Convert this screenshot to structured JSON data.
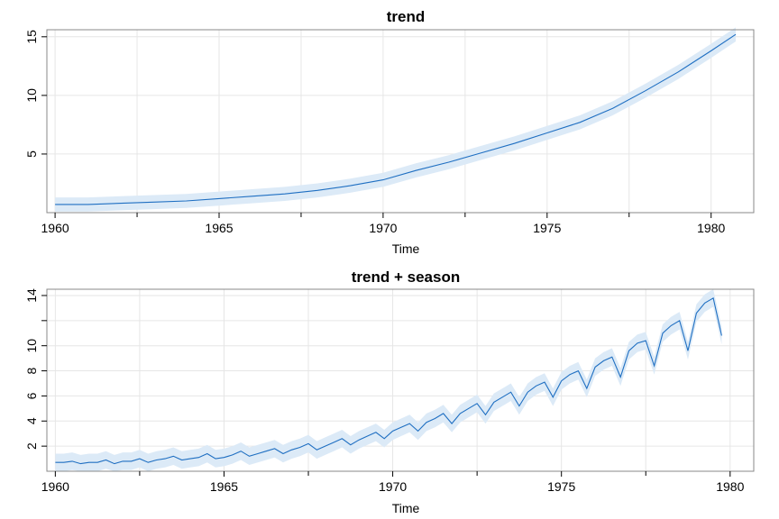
{
  "chart_data": [
    {
      "type": "line",
      "title": "trend",
      "xlabel": "Time",
      "ylabel": "",
      "xlim": [
        1959.75,
        1981.3
      ],
      "ylim": [
        0.0,
        15.6
      ],
      "xticks": [
        1960,
        1965,
        1970,
        1975,
        1980
      ],
      "xtick_labels": [
        "1960",
        "1965",
        "1970",
        "1975",
        "1980"
      ],
      "yticks": [
        5,
        10,
        15
      ],
      "ytick_labels": [
        "5",
        "10",
        "15"
      ],
      "grid": true,
      "color": "#1f6fc2",
      "band_color": "#dceaf7",
      "series": [
        {
          "x": [
            1960.0,
            1961.0,
            1962.0,
            1963.0,
            1964.0,
            1965.0,
            1966.0,
            1967.0,
            1968.0,
            1969.0,
            1970.0,
            1971.0,
            1972.0,
            1973.0,
            1974.0,
            1975.0,
            1976.0,
            1977.0,
            1978.0,
            1979.0,
            1980.0,
            1980.75
          ],
          "values": [
            0.7,
            0.7,
            0.8,
            0.9,
            1.0,
            1.2,
            1.4,
            1.6,
            1.9,
            2.3,
            2.8,
            3.6,
            4.3,
            5.1,
            5.9,
            6.8,
            7.7,
            8.9,
            10.4,
            12.0,
            13.8,
            15.2
          ],
          "band": [
            0.6,
            0.6,
            0.6,
            0.6,
            0.6,
            0.6,
            0.6,
            0.6,
            0.6,
            0.6,
            0.6,
            0.6,
            0.6,
            0.6,
            0.6,
            0.6,
            0.6,
            0.6,
            0.6,
            0.6,
            0.6,
            0.6
          ]
        }
      ]
    },
    {
      "type": "line",
      "title": "trend + season",
      "xlabel": "Time",
      "ylabel": "",
      "xlim": [
        1959.75,
        1980.7
      ],
      "ylim": [
        0.0,
        14.5
      ],
      "xticks": [
        1960,
        1965,
        1970,
        1975,
        1980
      ],
      "xtick_labels": [
        "1960",
        "1965",
        "1970",
        "1975",
        "1980"
      ],
      "yticks": [
        2,
        4,
        6,
        8,
        10,
        12,
        14
      ],
      "ytick_labels": [
        "2",
        "4",
        "6",
        "8",
        "10",
        "",
        "14"
      ],
      "grid": true,
      "color": "#1f6fc2",
      "band_color": "#dceaf7",
      "series": [
        {
          "x": [
            1960.0,
            1960.25,
            1960.5,
            1960.75,
            1961.0,
            1961.25,
            1961.5,
            1961.75,
            1962.0,
            1962.25,
            1962.5,
            1962.75,
            1963.0,
            1963.25,
            1963.5,
            1963.75,
            1964.0,
            1964.25,
            1964.5,
            1964.75,
            1965.0,
            1965.25,
            1965.5,
            1965.75,
            1966.0,
            1966.25,
            1966.5,
            1966.75,
            1967.0,
            1967.25,
            1967.5,
            1967.75,
            1968.0,
            1968.25,
            1968.5,
            1968.75,
            1969.0,
            1969.25,
            1969.5,
            1969.75,
            1970.0,
            1970.25,
            1970.5,
            1970.75,
            1971.0,
            1971.25,
            1971.5,
            1971.75,
            1972.0,
            1972.25,
            1972.5,
            1972.75,
            1973.0,
            1973.25,
            1973.5,
            1973.75,
            1974.0,
            1974.25,
            1974.5,
            1974.75,
            1975.0,
            1975.25,
            1975.5,
            1975.75,
            1976.0,
            1976.25,
            1976.5,
            1976.75,
            1977.0,
            1977.25,
            1977.5,
            1977.75,
            1978.0,
            1978.25,
            1978.5,
            1978.75,
            1979.0,
            1979.25,
            1979.5,
            1979.75
          ],
          "values": [
            0.7,
            0.7,
            0.8,
            0.6,
            0.7,
            0.7,
            0.9,
            0.6,
            0.8,
            0.8,
            1.0,
            0.7,
            0.9,
            1.0,
            1.2,
            0.9,
            1.0,
            1.1,
            1.4,
            1.0,
            1.1,
            1.3,
            1.6,
            1.2,
            1.4,
            1.6,
            1.8,
            1.4,
            1.7,
            1.9,
            2.2,
            1.7,
            2.0,
            2.3,
            2.6,
            2.1,
            2.5,
            2.8,
            3.1,
            2.6,
            3.2,
            3.5,
            3.8,
            3.2,
            3.9,
            4.2,
            4.6,
            3.8,
            4.6,
            5.0,
            5.4,
            4.5,
            5.5,
            5.9,
            6.3,
            5.2,
            6.3,
            6.8,
            7.1,
            5.9,
            7.2,
            7.7,
            8.0,
            6.6,
            8.3,
            8.8,
            9.1,
            7.5,
            9.6,
            10.2,
            10.4,
            8.4,
            11.0,
            11.6,
            12.0,
            9.6,
            12.6,
            13.4,
            13.8,
            10.8
          ],
          "band": [
            0.7,
            0.7,
            0.7,
            0.7,
            0.7,
            0.7,
            0.7,
            0.7,
            0.7,
            0.7,
            0.7,
            0.7,
            0.7,
            0.7,
            0.7,
            0.7,
            0.7,
            0.7,
            0.7,
            0.7,
            0.7,
            0.7,
            0.7,
            0.7,
            0.7,
            0.7,
            0.7,
            0.7,
            0.7,
            0.7,
            0.7,
            0.7,
            0.7,
            0.7,
            0.7,
            0.7,
            0.7,
            0.7,
            0.7,
            0.7,
            0.7,
            0.7,
            0.7,
            0.7,
            0.7,
            0.7,
            0.7,
            0.7,
            0.7,
            0.7,
            0.7,
            0.7,
            0.7,
            0.7,
            0.7,
            0.7,
            0.7,
            0.7,
            0.7,
            0.7,
            0.7,
            0.7,
            0.7,
            0.7,
            0.7,
            0.7,
            0.7,
            0.7,
            0.7,
            0.7,
            0.7,
            0.7,
            0.7,
            0.7,
            0.7,
            0.7,
            0.7,
            0.7,
            0.7,
            0.7
          ]
        }
      ]
    }
  ]
}
